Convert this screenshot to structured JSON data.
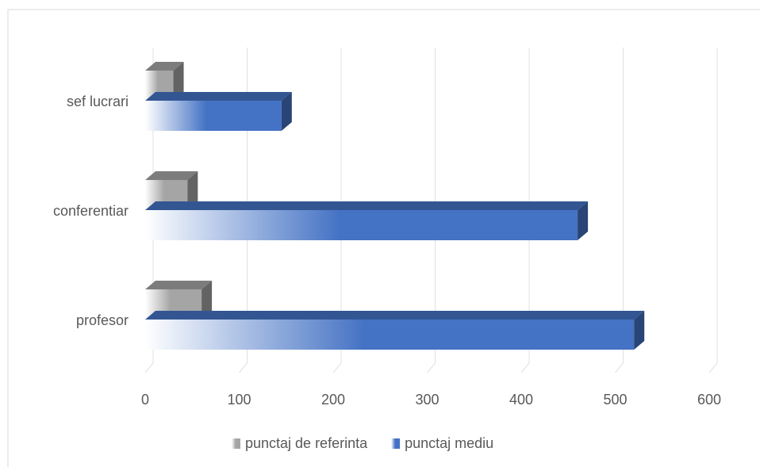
{
  "chart_data": {
    "type": "bar3d_horizontal",
    "categories": [
      "sef lucrari",
      "conferentiar",
      "profesor"
    ],
    "series": [
      {
        "name": "punctaj de referinta",
        "color": "#a5a5a5",
        "values": [
          30,
          45,
          60
        ]
      },
      {
        "name": "punctaj mediu",
        "color": "#4472c4",
        "values": [
          145,
          460,
          520
        ]
      }
    ],
    "xlim": [
      0,
      600
    ],
    "xticks": [
      0,
      100,
      200,
      300,
      400,
      500,
      600
    ],
    "grid": true
  }
}
